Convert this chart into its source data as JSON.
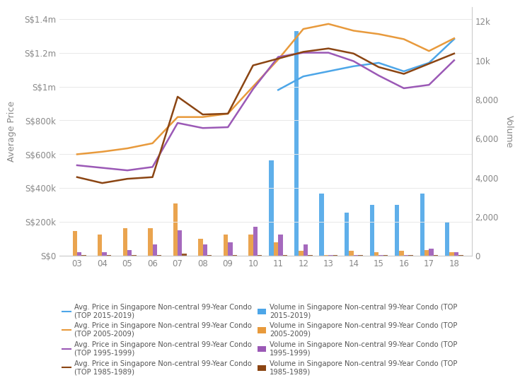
{
  "years": [
    3,
    4,
    5,
    6,
    7,
    8,
    9,
    10,
    11,
    12,
    13,
    14,
    15,
    16,
    17,
    18
  ],
  "avg_price_2015_2019": [
    null,
    null,
    null,
    null,
    null,
    null,
    null,
    null,
    980000,
    1060000,
    1090000,
    1120000,
    1140000,
    1090000,
    1140000,
    1280000
  ],
  "avg_price_2005_2009": [
    600000,
    615000,
    635000,
    665000,
    820000,
    820000,
    840000,
    1000000,
    1160000,
    1340000,
    1370000,
    1330000,
    1310000,
    1280000,
    1210000,
    1285000
  ],
  "avg_price_1995_1999": [
    535000,
    520000,
    505000,
    525000,
    785000,
    755000,
    760000,
    985000,
    1175000,
    1200000,
    1200000,
    1150000,
    1065000,
    990000,
    1010000,
    1155000
  ],
  "avg_price_1985_1989": [
    465000,
    430000,
    455000,
    465000,
    940000,
    835000,
    840000,
    1125000,
    1165000,
    1205000,
    1225000,
    1195000,
    1115000,
    1075000,
    1135000,
    1195000
  ],
  "vol_2015_2019": [
    null,
    null,
    null,
    null,
    null,
    null,
    null,
    null,
    4900,
    11500,
    3200,
    2200,
    2600,
    2600,
    3200,
    1700
  ],
  "vol_2005_2009": [
    1280,
    1080,
    1400,
    1400,
    2700,
    880,
    1080,
    1080,
    680,
    260,
    40,
    260,
    200,
    260,
    280,
    200
  ],
  "vol_1995_1999": [
    200,
    200,
    280,
    580,
    1300,
    580,
    680,
    1480,
    1080,
    580,
    40,
    40,
    40,
    40,
    380,
    200
  ],
  "vol_1985_1989": [
    30,
    30,
    30,
    30,
    100,
    30,
    30,
    30,
    30,
    30,
    30,
    30,
    30,
    30,
    30,
    30
  ],
  "color_2015_2019": "#4da6e8",
  "color_2005_2009": "#e89a3c",
  "color_1995_1999": "#9b59b6",
  "color_1985_1989": "#8B4513",
  "bg_color": "#ffffff",
  "grid_color": "#e8e8e8",
  "ylabel_left": "Average Price",
  "ylabel_right": "Volume",
  "yticks_left": [
    0,
    200000,
    400000,
    600000,
    800000,
    1000000,
    1200000,
    1400000
  ],
  "yticks_left_labels": [
    "S$0",
    "S$200k",
    "S$400k",
    "S$600k",
    "S$800k",
    "S$1m",
    "S$1.2m",
    "S$1.4m"
  ],
  "yticks_right": [
    0,
    2000,
    4000,
    6000,
    8000,
    10000,
    12000
  ],
  "yticks_right_labels": [
    "0",
    "2,000",
    "4,000",
    "6,000",
    "8,000",
    "10k",
    "12k"
  ],
  "ylim_left": [
    0,
    1470000
  ],
  "ylim_right": [
    0,
    12740
  ],
  "xlim": [
    2.3,
    18.7
  ],
  "xticks": [
    3,
    4,
    5,
    6,
    7,
    8,
    9,
    10,
    11,
    12,
    13,
    14,
    15,
    16,
    17,
    18
  ],
  "xtick_labels": [
    "03",
    "04",
    "05",
    "06",
    "07",
    "08",
    "09",
    "10",
    "11",
    "12",
    "13",
    "14",
    "15",
    "16",
    "17",
    "18"
  ],
  "legend_entries_line": [
    "Avg. Price in Singapore Non-central 99-Year Condo\n(TOP 2015-2019)",
    "Avg. Price in Singapore Non-central 99-Year Condo\n(TOP 2005-2009)",
    "Avg. Price in Singapore Non-central 99-Year Condo\n(TOP 1995-1999)",
    "Avg. Price in Singapore Non-central 99-Year Condo\n(TOP 1985-1989)"
  ],
  "legend_entries_bar": [
    "Volume in Singapore Non-central 99-Year Condo (TOP\n2015-2019)",
    "Volume in Singapore Non-central 99-Year Condo (TOP\n2005-2009)",
    "Volume in Singapore Non-central 99-Year Condo (TOP\n1995-1999)",
    "Volume in Singapore Non-central 99-Year Condo (TOP\n1985-1989)"
  ]
}
